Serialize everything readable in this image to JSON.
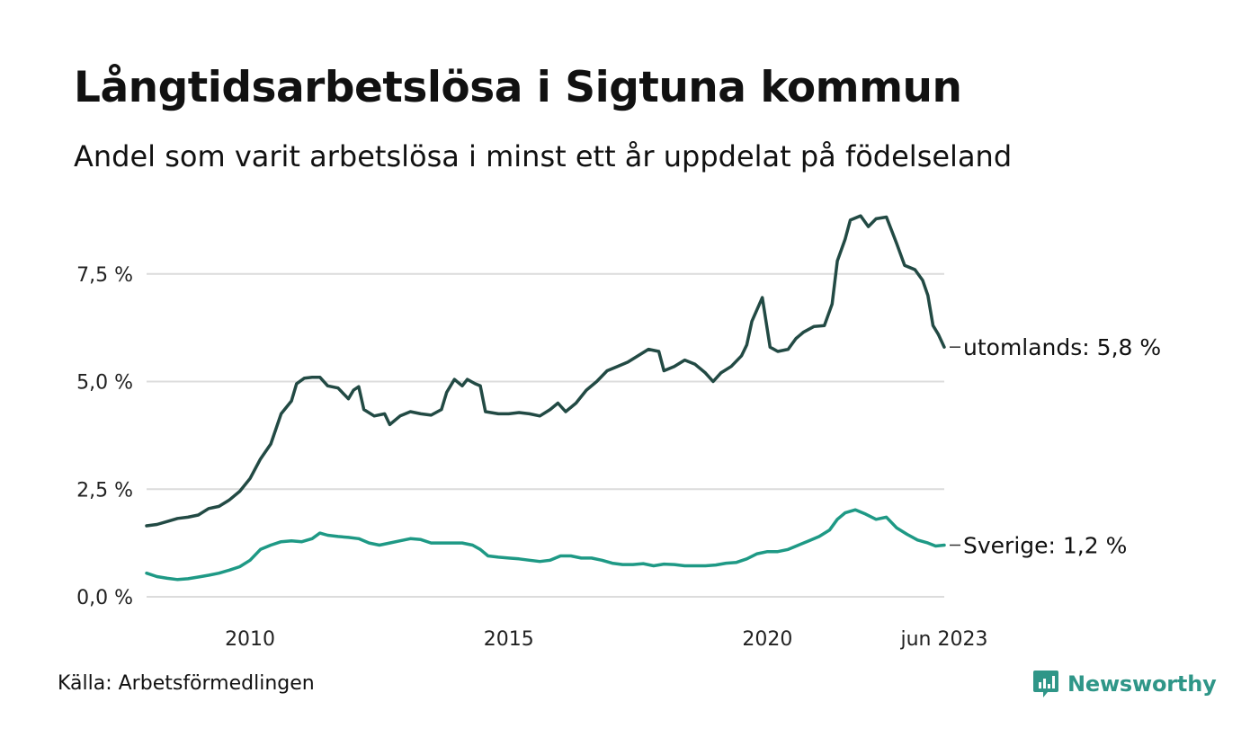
{
  "title": "Långtidsarbetslösa i Sigtuna kommun",
  "subtitle": "Andel som varit arbetslösa i minst ett år uppdelat på födelseland",
  "source": "Källa: Arbetsförmedlingen",
  "brand": {
    "name": "Newsworthy",
    "icon": "newsworthy-logo-icon",
    "color": "#2f9688"
  },
  "chart_data": {
    "type": "line",
    "title": "Långtidsarbetslösa i Sigtuna kommun",
    "xlabel": "",
    "ylabel": "",
    "x_range": [
      2008.0,
      2023.417
    ],
    "ylim": [
      0,
      9.0
    ],
    "grid": true,
    "y_ticks": [
      {
        "value": 0,
        "label": "0,0 %"
      },
      {
        "value": 2.5,
        "label": "2,5 %"
      },
      {
        "value": 5.0,
        "label": "5,0 %"
      },
      {
        "value": 7.5,
        "label": "7,5 %"
      }
    ],
    "x_ticks": [
      {
        "value": 2010,
        "label": "2010"
      },
      {
        "value": 2015,
        "label": "2015"
      },
      {
        "value": 2020,
        "label": "2020"
      },
      {
        "value": 2023.417,
        "label": "jun 2023"
      }
    ],
    "series": [
      {
        "name": "utomlands",
        "end_label": "utomlands: 5,8 %",
        "color": "#224a44",
        "points": [
          [
            2008.0,
            1.65
          ],
          [
            2008.2,
            1.68
          ],
          [
            2008.4,
            1.75
          ],
          [
            2008.6,
            1.82
          ],
          [
            2008.8,
            1.85
          ],
          [
            2009.0,
            1.9
          ],
          [
            2009.2,
            2.05
          ],
          [
            2009.4,
            2.1
          ],
          [
            2009.6,
            2.25
          ],
          [
            2009.8,
            2.45
          ],
          [
            2010.0,
            2.75
          ],
          [
            2010.2,
            3.2
          ],
          [
            2010.4,
            3.55
          ],
          [
            2010.6,
            4.25
          ],
          [
            2010.8,
            4.55
          ],
          [
            2010.9,
            4.95
          ],
          [
            2011.05,
            5.08
          ],
          [
            2011.2,
            5.1
          ],
          [
            2011.35,
            5.1
          ],
          [
            2011.5,
            4.9
          ],
          [
            2011.7,
            4.85
          ],
          [
            2011.9,
            4.6
          ],
          [
            2012.0,
            4.8
          ],
          [
            2012.1,
            4.88
          ],
          [
            2012.2,
            4.35
          ],
          [
            2012.4,
            4.2
          ],
          [
            2012.6,
            4.25
          ],
          [
            2012.7,
            4.0
          ],
          [
            2012.9,
            4.2
          ],
          [
            2013.1,
            4.3
          ],
          [
            2013.3,
            4.25
          ],
          [
            2013.5,
            4.22
          ],
          [
            2013.7,
            4.35
          ],
          [
            2013.8,
            4.75
          ],
          [
            2013.95,
            5.05
          ],
          [
            2014.1,
            4.9
          ],
          [
            2014.2,
            5.05
          ],
          [
            2014.35,
            4.95
          ],
          [
            2014.45,
            4.9
          ],
          [
            2014.55,
            4.3
          ],
          [
            2014.8,
            4.25
          ],
          [
            2015.0,
            4.25
          ],
          [
            2015.2,
            4.28
          ],
          [
            2015.4,
            4.25
          ],
          [
            2015.6,
            4.2
          ],
          [
            2015.8,
            4.35
          ],
          [
            2015.95,
            4.5
          ],
          [
            2016.1,
            4.3
          ],
          [
            2016.3,
            4.5
          ],
          [
            2016.5,
            4.8
          ],
          [
            2016.7,
            5.0
          ],
          [
            2016.9,
            5.25
          ],
          [
            2017.1,
            5.35
          ],
          [
            2017.3,
            5.45
          ],
          [
            2017.5,
            5.6
          ],
          [
            2017.7,
            5.75
          ],
          [
            2017.9,
            5.7
          ],
          [
            2018.0,
            5.25
          ],
          [
            2018.2,
            5.35
          ],
          [
            2018.4,
            5.5
          ],
          [
            2018.6,
            5.4
          ],
          [
            2018.8,
            5.2
          ],
          [
            2018.95,
            5.0
          ],
          [
            2019.1,
            5.2
          ],
          [
            2019.3,
            5.35
          ],
          [
            2019.5,
            5.6
          ],
          [
            2019.6,
            5.85
          ],
          [
            2019.7,
            6.4
          ],
          [
            2019.9,
            6.95
          ],
          [
            2020.05,
            5.8
          ],
          [
            2020.2,
            5.7
          ],
          [
            2020.4,
            5.75
          ],
          [
            2020.55,
            6.0
          ],
          [
            2020.7,
            6.15
          ],
          [
            2020.9,
            6.28
          ],
          [
            2021.1,
            6.3
          ],
          [
            2021.25,
            6.8
          ],
          [
            2021.35,
            7.8
          ],
          [
            2021.5,
            8.3
          ],
          [
            2021.6,
            8.75
          ],
          [
            2021.8,
            8.85
          ],
          [
            2021.95,
            8.6
          ],
          [
            2022.1,
            8.78
          ],
          [
            2022.3,
            8.82
          ],
          [
            2022.5,
            8.2
          ],
          [
            2022.65,
            7.7
          ],
          [
            2022.85,
            7.6
          ],
          [
            2023.0,
            7.35
          ],
          [
            2023.1,
            7.0
          ],
          [
            2023.2,
            6.3
          ],
          [
            2023.3,
            6.1
          ],
          [
            2023.417,
            5.8
          ]
        ]
      },
      {
        "name": "Sverige",
        "end_label": "Sverige: 1,2 %",
        "color": "#1e9985",
        "points": [
          [
            2008.0,
            0.55
          ],
          [
            2008.2,
            0.47
          ],
          [
            2008.4,
            0.43
          ],
          [
            2008.6,
            0.4
          ],
          [
            2008.8,
            0.42
          ],
          [
            2009.0,
            0.46
          ],
          [
            2009.2,
            0.5
          ],
          [
            2009.4,
            0.55
          ],
          [
            2009.6,
            0.62
          ],
          [
            2009.8,
            0.7
          ],
          [
            2010.0,
            0.85
          ],
          [
            2010.2,
            1.1
          ],
          [
            2010.4,
            1.2
          ],
          [
            2010.6,
            1.28
          ],
          [
            2010.8,
            1.3
          ],
          [
            2011.0,
            1.28
          ],
          [
            2011.2,
            1.35
          ],
          [
            2011.35,
            1.48
          ],
          [
            2011.5,
            1.43
          ],
          [
            2011.7,
            1.4
          ],
          [
            2011.9,
            1.38
          ],
          [
            2012.1,
            1.35
          ],
          [
            2012.3,
            1.25
          ],
          [
            2012.5,
            1.2
          ],
          [
            2012.7,
            1.25
          ],
          [
            2012.9,
            1.3
          ],
          [
            2013.1,
            1.35
          ],
          [
            2013.3,
            1.33
          ],
          [
            2013.5,
            1.25
          ],
          [
            2013.7,
            1.25
          ],
          [
            2013.9,
            1.25
          ],
          [
            2014.1,
            1.25
          ],
          [
            2014.3,
            1.2
          ],
          [
            2014.45,
            1.1
          ],
          [
            2014.6,
            0.95
          ],
          [
            2014.8,
            0.92
          ],
          [
            2015.0,
            0.9
          ],
          [
            2015.2,
            0.88
          ],
          [
            2015.4,
            0.85
          ],
          [
            2015.6,
            0.82
          ],
          [
            2015.8,
            0.85
          ],
          [
            2016.0,
            0.95
          ],
          [
            2016.2,
            0.95
          ],
          [
            2016.4,
            0.9
          ],
          [
            2016.6,
            0.9
          ],
          [
            2016.8,
            0.85
          ],
          [
            2017.0,
            0.78
          ],
          [
            2017.2,
            0.75
          ],
          [
            2017.4,
            0.75
          ],
          [
            2017.6,
            0.77
          ],
          [
            2017.8,
            0.72
          ],
          [
            2018.0,
            0.76
          ],
          [
            2018.2,
            0.75
          ],
          [
            2018.4,
            0.72
          ],
          [
            2018.6,
            0.72
          ],
          [
            2018.8,
            0.72
          ],
          [
            2019.0,
            0.74
          ],
          [
            2019.2,
            0.78
          ],
          [
            2019.4,
            0.8
          ],
          [
            2019.6,
            0.88
          ],
          [
            2019.8,
            1.0
          ],
          [
            2020.0,
            1.05
          ],
          [
            2020.2,
            1.05
          ],
          [
            2020.4,
            1.1
          ],
          [
            2020.6,
            1.2
          ],
          [
            2020.8,
            1.3
          ],
          [
            2021.0,
            1.4
          ],
          [
            2021.2,
            1.55
          ],
          [
            2021.35,
            1.8
          ],
          [
            2021.5,
            1.95
          ],
          [
            2021.7,
            2.02
          ],
          [
            2021.9,
            1.92
          ],
          [
            2022.1,
            1.8
          ],
          [
            2022.3,
            1.85
          ],
          [
            2022.5,
            1.6
          ],
          [
            2022.7,
            1.45
          ],
          [
            2022.9,
            1.32
          ],
          [
            2023.1,
            1.25
          ],
          [
            2023.25,
            1.18
          ],
          [
            2023.417,
            1.2
          ]
        ]
      }
    ]
  }
}
